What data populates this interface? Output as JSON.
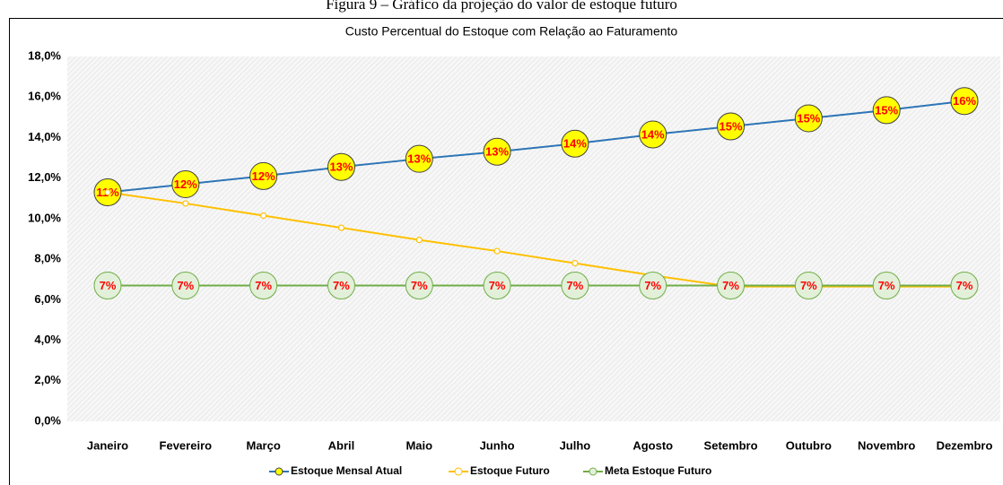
{
  "caption": "Figura 9 – Gráfico da projeção do valor de estoque futuro",
  "chart_data": {
    "type": "line",
    "title": "Custo Percentual do Estoque com Relação ao Faturamento",
    "categories": [
      "Janeiro",
      "Fevereiro",
      "Março",
      "Abril",
      "Maio",
      "Junho",
      "Julho",
      "Agosto",
      "Setembro",
      "Outubro",
      "Novembro",
      "Dezembro"
    ],
    "series": [
      {
        "name": "Estoque Mensal Atual",
        "color": "#2e75b6",
        "marker_color": "#ffff00",
        "values": [
          11.3,
          11.7,
          12.1,
          12.55,
          12.95,
          13.3,
          13.7,
          14.15,
          14.55,
          14.95,
          15.35,
          15.8
        ],
        "value_labels": [
          "11%",
          "12%",
          "12%",
          "13%",
          "13%",
          "13%",
          "14%",
          "14%",
          "15%",
          "15%",
          "15%",
          "16%"
        ]
      },
      {
        "name": "Estoque Futuro",
        "color": "#ffc000",
        "marker_color": "#ffffff",
        "values": [
          11.3,
          10.75,
          10.15,
          9.55,
          8.95,
          8.4,
          7.8,
          7.2,
          6.65,
          6.65,
          6.65,
          6.65
        ]
      },
      {
        "name": "Meta Estoque Futuro",
        "color": "#70ad47",
        "marker_color": "#e2f0d9",
        "values": [
          6.7,
          6.7,
          6.7,
          6.7,
          6.7,
          6.7,
          6.7,
          6.7,
          6.7,
          6.7,
          6.7,
          6.7
        ],
        "value_labels": [
          "7%",
          "7%",
          "7%",
          "7%",
          "7%",
          "7%",
          "7%",
          "7%",
          "7%",
          "7%",
          "7%",
          "7%"
        ]
      }
    ],
    "ylim": [
      0,
      18
    ],
    "yticks": [
      {
        "value": 0,
        "label": "0,0%"
      },
      {
        "value": 2,
        "label": "2,0%"
      },
      {
        "value": 4,
        "label": "4,0%"
      },
      {
        "value": 6,
        "label": "6,0%"
      },
      {
        "value": 8,
        "label": "8,0%"
      },
      {
        "value": 10,
        "label": "10,0%"
      },
      {
        "value": 12,
        "label": "12,0%"
      },
      {
        "value": 14,
        "label": "14,0%"
      },
      {
        "value": 16,
        "label": "16,0%"
      },
      {
        "value": 18,
        "label": "18,0%"
      }
    ],
    "grid": false,
    "legend": "bottom"
  }
}
